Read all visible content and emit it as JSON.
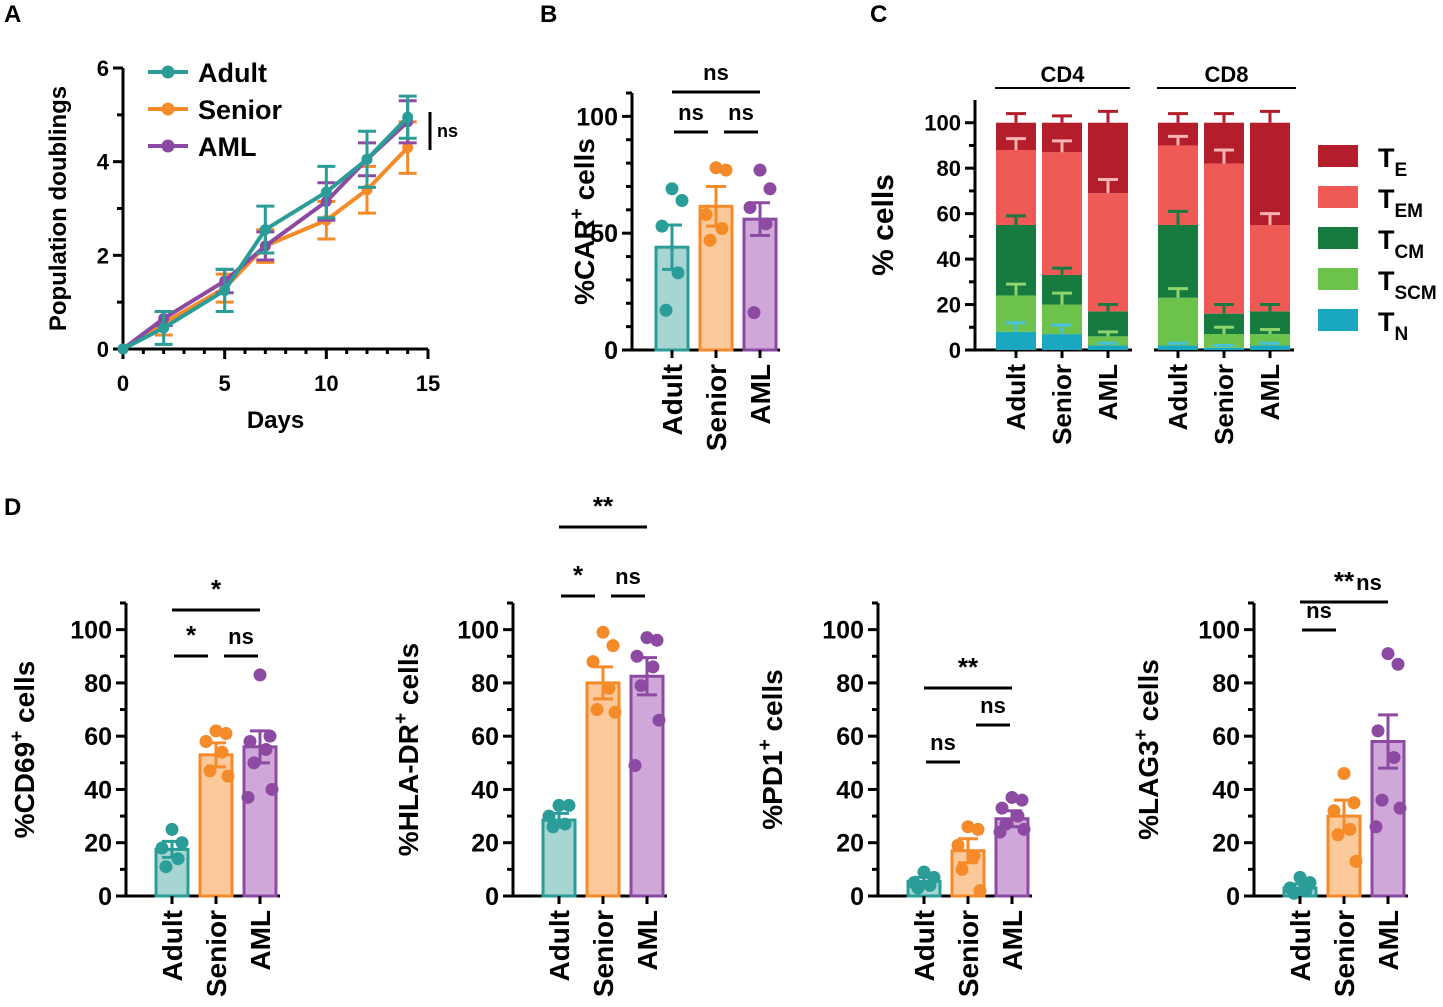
{
  "colors": {
    "adult": "#2a9d98",
    "adult_fill": "#a6d5d2",
    "senior": "#f58a29",
    "senior_fill": "#fbc99a",
    "aml": "#8d4aa3",
    "aml_fill": "#cfa7d8",
    "TE": "#b31e2a",
    "TEM": "#ef5a56",
    "TCM": "#177a3e",
    "TSCM": "#6cc24a",
    "TN": "#1aa7c0"
  },
  "chart_data": [
    {
      "panel": "A",
      "type": "line",
      "xlabel": "Days",
      "ylabel": "Population doublings",
      "xlim": [
        0,
        15
      ],
      "ylim": [
        0,
        6
      ],
      "xticks": [
        "0",
        "5",
        "10",
        "15"
      ],
      "yticks": [
        "0",
        "2",
        "4",
        "6"
      ],
      "significance": "ns",
      "series": [
        {
          "name": "Adult",
          "x": [
            0,
            2,
            5,
            7,
            10,
            12,
            14
          ],
          "y": [
            0,
            0.45,
            1.25,
            2.55,
            3.35,
            4.05,
            4.95
          ],
          "err": [
            0,
            0.35,
            0.45,
            0.5,
            0.55,
            0.6,
            0.45
          ]
        },
        {
          "name": "Senior",
          "x": [
            0,
            2,
            5,
            7,
            10,
            12,
            14
          ],
          "y": [
            0,
            0.55,
            1.3,
            2.2,
            2.75,
            3.4,
            4.3
          ],
          "err": [
            0,
            0.25,
            0.3,
            0.35,
            0.4,
            0.5,
            0.55
          ]
        },
        {
          "name": "AML",
          "x": [
            0,
            2,
            5,
            7,
            10,
            12,
            14
          ],
          "y": [
            0,
            0.65,
            1.45,
            2.2,
            3.15,
            4.05,
            4.85
          ],
          "err": [
            0,
            0.15,
            0.25,
            0.3,
            0.4,
            0.35,
            0.45
          ]
        }
      ]
    },
    {
      "panel": "B",
      "type": "bar",
      "ylabel": "%CAR",
      "ylabel_sup": "+",
      "ylabel_tail": " cells",
      "ylim": [
        0,
        110
      ],
      "yticks": [
        "0",
        "50",
        "100"
      ],
      "categories": [
        "Adult",
        "Senior",
        "AML"
      ],
      "values": [
        44,
        61.5,
        56
      ],
      "errors": [
        9.5,
        8.5,
        7
      ],
      "points": [
        [
          69,
          64,
          53,
          33,
          17
        ],
        [
          78,
          77,
          58,
          52,
          47
        ],
        [
          77,
          69,
          61,
          54,
          16
        ]
      ],
      "brackets": [
        {
          "from": 0,
          "to": 2,
          "label": "ns",
          "level": 2
        },
        {
          "from": 0,
          "to": 1,
          "label": "ns",
          "level": 1
        },
        {
          "from": 1,
          "to": 2,
          "label": "ns",
          "level": 1
        }
      ]
    },
    {
      "panel": "C",
      "type": "stacked-bar",
      "ylabel": "% cells",
      "ylim": [
        0,
        100
      ],
      "yticks": [
        "0",
        "20",
        "40",
        "60",
        "80",
        "100"
      ],
      "groups": [
        "CD4",
        "CD8"
      ],
      "categories": [
        "Adult",
        "Senior",
        "AML",
        "Adult",
        "Senior",
        "AML"
      ],
      "legend": [
        {
          "key": "TE",
          "main": "T",
          "sub": "E"
        },
        {
          "key": "TEM",
          "main": "T",
          "sub": "EM"
        },
        {
          "key": "TCM",
          "main": "T",
          "sub": "CM"
        },
        {
          "key": "TSCM",
          "main": "T",
          "sub": "SCM"
        },
        {
          "key": "TN",
          "main": "T",
          "sub": "N"
        }
      ],
      "stack_order": [
        "TN",
        "TSCM",
        "TCM",
        "TEM",
        "TE"
      ],
      "cumulative_tops": [
        [
          8,
          24,
          55,
          88,
          100
        ],
        [
          7,
          20,
          33,
          87,
          100
        ],
        [
          2,
          6,
          17,
          69,
          100
        ],
        [
          2,
          23,
          55,
          90,
          100
        ],
        [
          1,
          7,
          16,
          82,
          100
        ],
        [
          2,
          7,
          17,
          55,
          100
        ]
      ],
      "top_errors": [
        [
          4,
          5,
          4,
          5,
          4
        ],
        [
          4,
          5,
          3,
          5,
          3
        ],
        [
          1,
          2,
          3,
          6,
          5
        ],
        [
          1,
          4,
          6,
          4,
          4
        ],
        [
          1,
          3,
          4,
          6,
          4
        ],
        [
          1,
          2,
          3,
          5,
          5
        ]
      ]
    },
    {
      "panel": "D1",
      "type": "bar",
      "ylabel": "%CD69",
      "ylabel_sup": "+",
      "ylabel_tail": " cells",
      "ylim": [
        0,
        110
      ],
      "yticks": [
        "0",
        "20",
        "40",
        "60",
        "80",
        "100"
      ],
      "categories": [
        "Adult",
        "Senior",
        "AML"
      ],
      "values": [
        17.5,
        53,
        56
      ],
      "errors": [
        3,
        4.5,
        6
      ],
      "points": [
        [
          25,
          20,
          18,
          14,
          11
        ],
        [
          62,
          61,
          58,
          54,
          47,
          45
        ],
        [
          83,
          60,
          58,
          55,
          50,
          40,
          37
        ]
      ],
      "brackets": [
        {
          "from": 0,
          "to": 2,
          "label": "*",
          "level": 2
        },
        {
          "from": 0,
          "to": 1,
          "label": "*",
          "level": 1
        },
        {
          "from": 1,
          "to": 2,
          "label": "ns",
          "level": 1
        }
      ]
    },
    {
      "panel": "D2",
      "type": "bar",
      "ylabel": "%HLA-DR",
      "ylabel_sup": "+",
      "ylabel_tail": " cells",
      "ylim": [
        0,
        110
      ],
      "yticks": [
        "0",
        "20",
        "40",
        "60",
        "80",
        "100"
      ],
      "categories": [
        "Adult",
        "Senior",
        "AML"
      ],
      "values": [
        28.5,
        80,
        82.5
      ],
      "errors": [
        2.5,
        6,
        7
      ],
      "points": [
        [
          34,
          34,
          30,
          27,
          26
        ],
        [
          99,
          94,
          88,
          78,
          70,
          69
        ],
        [
          97,
          96,
          90,
          86,
          79,
          66,
          49
        ]
      ],
      "brackets": [
        {
          "from": 0,
          "to": 2,
          "label": "**",
          "level": 2
        },
        {
          "from": 0,
          "to": 1,
          "label": "*",
          "level": 1
        },
        {
          "from": 1,
          "to": 2,
          "label": "ns",
          "level": 1
        }
      ]
    },
    {
      "panel": "D3",
      "type": "bar",
      "ylabel": "%PD1",
      "ylabel_sup": "+",
      "ylabel_tail": " cells",
      "ylim": [
        0,
        110
      ],
      "yticks": [
        "0",
        "20",
        "40",
        "60",
        "80",
        "100"
      ],
      "categories": [
        "Adult",
        "Senior",
        "AML"
      ],
      "values": [
        5.5,
        17,
        29
      ],
      "errors": [
        1.5,
        4.5,
        3
      ],
      "points": [
        [
          9,
          7,
          5,
          4,
          3
        ],
        [
          26,
          25,
          19,
          15,
          10,
          2
        ],
        [
          37,
          36,
          33,
          30,
          27,
          25,
          24
        ]
      ],
      "brackets": [
        {
          "from": 0,
          "to": 2,
          "label": "**",
          "level": 3
        },
        {
          "from": 0,
          "to": 1,
          "label": "ns",
          "level": 1
        },
        {
          "from": 1,
          "to": 2,
          "label": "ns",
          "level": 2
        }
      ]
    },
    {
      "panel": "D4",
      "type": "bar",
      "ylabel": "%LAG3",
      "ylabel_sup": "+",
      "ylabel_tail": " cells",
      "ylim": [
        0,
        110
      ],
      "yticks": [
        "0",
        "20",
        "40",
        "60",
        "80",
        "100"
      ],
      "categories": [
        "Adult",
        "Senior",
        "AML"
      ],
      "values": [
        3,
        30,
        58
      ],
      "errors": [
        1.5,
        6,
        10
      ],
      "points": [
        [
          7,
          5,
          3,
          2,
          1
        ],
        [
          46,
          35,
          32,
          25,
          23,
          13
        ],
        [
          91,
          87,
          62,
          52,
          36,
          33,
          26
        ]
      ],
      "brackets": [
        {
          "from": 0,
          "to": 2,
          "label": "**",
          "level": 3
        },
        {
          "from": 0,
          "to": 1,
          "label": "ns",
          "level": 2
        },
        {
          "from": 1,
          "to": 2,
          "label": "ns",
          "level": 3
        }
      ]
    }
  ],
  "panel_labels": [
    "A",
    "B",
    "C",
    "D"
  ]
}
